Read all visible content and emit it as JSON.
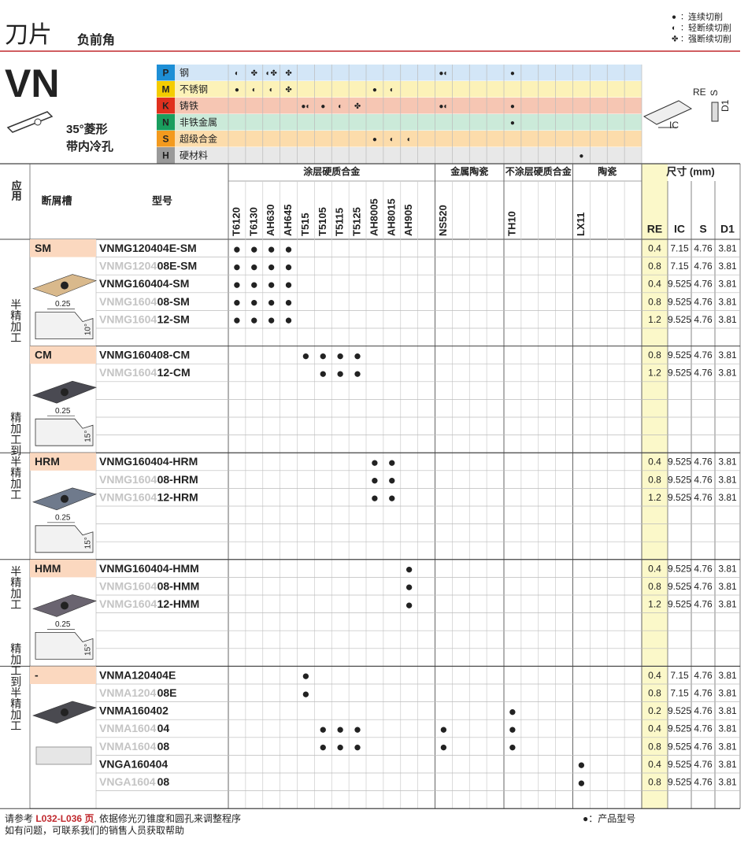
{
  "header": {
    "title": "刀片",
    "subtitle": "负前角",
    "code": "VN",
    "shape": [
      "35°菱形",
      "带内冷孔"
    ],
    "legend": [
      {
        "symbol": "●",
        "label": "连续切削"
      },
      {
        "symbol": "◐",
        "label": "轻断续切削"
      },
      {
        "symbol": "✤",
        "label": "强断续切削"
      }
    ]
  },
  "diagram": {
    "labels": [
      "RE",
      "S",
      "D1",
      "IC"
    ]
  },
  "materials": [
    {
      "code": "P",
      "name": "钢",
      "color": "#1e8fd6",
      "bg": "#d3e6f7",
      "marks": {
        "T6120": "◐",
        "T6130": "✤",
        "AH630": "◐✤",
        "AH645": "✤",
        "NS520": "●◐",
        "TH10": "●"
      }
    },
    {
      "code": "M",
      "name": "不锈钢",
      "color": "#f4cc00",
      "bg": "#fcf2b8",
      "marks": {
        "T6120": "●",
        "T6130": "◐",
        "AH630": "◐",
        "AH645": "✤",
        "AH8005": "●",
        "AH8015": "◐"
      }
    },
    {
      "code": "K",
      "name": "铸铁",
      "color": "#e0301e",
      "bg": "#f6c6b3",
      "marks": {
        "T515": "●◐",
        "T5105": "●",
        "T5115": "◐",
        "T5125": "✤",
        "NS520": "●◐",
        "TH10": "●"
      }
    },
    {
      "code": "N",
      "name": "非铁金属",
      "color": "#1a9e5e",
      "bg": "#cbead9",
      "marks": {
        "TH10": "●"
      }
    },
    {
      "code": "S",
      "name": "超级合金",
      "color": "#f39a1e",
      "bg": "#fcdcab",
      "marks": {
        "AH8005": "●",
        "AH8015": "◐",
        "AH905": "◐"
      }
    },
    {
      "code": "H",
      "name": "硬材料",
      "color": "#9a9a9a",
      "bg": "#e8e8e8",
      "marks": {
        "LX11": "●"
      }
    }
  ],
  "table": {
    "headers": {
      "application": "应用",
      "breaker": "断屑槽",
      "model": "型号",
      "dims": "尺寸 (mm)",
      "dim_cols": [
        "RE",
        "IC",
        "S",
        "D1"
      ]
    },
    "grade_groups": [
      {
        "name": "涂层硬质合金",
        "grades": [
          "T6120",
          "T6130",
          "AH630",
          "AH645",
          "T515",
          "T5105",
          "T5115",
          "T5125",
          "AH8005",
          "AH8015",
          "AH905",
          null
        ]
      },
      {
        "name": "金属陶瓷",
        "grades": [
          "NS520",
          null,
          null,
          null
        ]
      },
      {
        "name": "不涂层硬质合金",
        "grades": [
          "TH10",
          null,
          null,
          null
        ]
      },
      {
        "name": "陶瓷",
        "grades": [
          "LX11",
          null,
          null,
          null
        ]
      }
    ],
    "sections": [
      {
        "application": "半精加工",
        "breakers": [
          {
            "name": "SM",
            "insert": "#d9b98c",
            "profile": [
              "0.25",
              "10°"
            ],
            "rows": [
              {
                "model": "VNMG120404E-SM",
                "grades": {
                  "T6120": "●",
                  "T6130": "●",
                  "AH630": "●",
                  "AH645": "●"
                },
                "dims": [
                  0.4,
                  7.15,
                  4.76,
                  3.81
                ]
              },
              {
                "model": [
                  "VNMG1204",
                  "08E-SM"
                ],
                "grades": {
                  "T6120": "●",
                  "T6130": "●",
                  "AH630": "●",
                  "AH645": "●"
                },
                "dims": [
                  0.8,
                  7.15,
                  4.76,
                  3.81
                ]
              },
              {
                "model": "VNMG160404-SM",
                "grades": {
                  "T6120": "●",
                  "T6130": "●",
                  "AH630": "●",
                  "AH645": "●"
                },
                "dims": [
                  0.4,
                  9.525,
                  4.76,
                  3.81
                ]
              },
              {
                "model": [
                  "VNMG1604",
                  "08-SM"
                ],
                "grades": {
                  "T6120": "●",
                  "T6130": "●",
                  "AH630": "●",
                  "AH645": "●"
                },
                "dims": [
                  0.8,
                  9.525,
                  4.76,
                  3.81
                ]
              },
              {
                "model": [
                  "VNMG1604",
                  "12-SM"
                ],
                "grades": {
                  "T6120": "●",
                  "T6130": "●",
                  "AH630": "●",
                  "AH645": "●"
                },
                "dims": [
                  1.2,
                  9.525,
                  4.76,
                  3.81
                ]
              }
            ]
          },
          {
            "name": "CM",
            "insert": "#4a4a52",
            "profile": [
              "0.25",
              "15°"
            ],
            "rows": [
              {
                "model": "VNMG160408-CM",
                "grades": {
                  "T515": "●",
                  "T5105": "●",
                  "T5115": "●",
                  "T5125": "●"
                },
                "dims": [
                  0.8,
                  9.525,
                  4.76,
                  3.81
                ]
              },
              {
                "model": [
                  "VNMG1604",
                  "12-CM"
                ],
                "grades": {
                  "T5105": "●",
                  "T5115": "●",
                  "T5125": "●"
                },
                "dims": [
                  1.2,
                  9.525,
                  4.76,
                  3.81
                ]
              }
            ]
          }
        ]
      },
      {
        "application": "精加工到半精加工",
        "breakers": [
          {
            "name": "HRM",
            "insert": "#6f7a8c",
            "profile": [
              "0.25",
              "15°"
            ],
            "rows": [
              {
                "model": "VNMG160404-HRM",
                "grades": {
                  "AH8005": "●",
                  "AH8015": "●"
                },
                "dims": [
                  0.4,
                  9.525,
                  4.76,
                  3.81
                ]
              },
              {
                "model": [
                  "VNMG1604",
                  "08-HRM"
                ],
                "grades": {
                  "AH8005": "●",
                  "AH8015": "●"
                },
                "dims": [
                  0.8,
                  9.525,
                  4.76,
                  3.81
                ]
              },
              {
                "model": [
                  "VNMG1604",
                  "12-HRM"
                ],
                "grades": {
                  "AH8005": "●",
                  "AH8015": "●"
                },
                "dims": [
                  1.2,
                  9.525,
                  4.76,
                  3.81
                ]
              }
            ]
          }
        ]
      },
      {
        "application": "半精加工",
        "breakers": [
          {
            "name": "HMM",
            "insert": "#6a6470",
            "profile": [
              "0.25",
              "15°"
            ],
            "rows": [
              {
                "model": "VNMG160404-HMM",
                "grades": {
                  "AH905": "●"
                },
                "dims": [
                  0.4,
                  9.525,
                  4.76,
                  3.81
                ]
              },
              {
                "model": [
                  "VNMG1604",
                  "08-HMM"
                ],
                "grades": {
                  "AH905": "●"
                },
                "dims": [
                  0.8,
                  9.525,
                  4.76,
                  3.81
                ]
              },
              {
                "model": [
                  "VNMG1604",
                  "12-HMM"
                ],
                "grades": {
                  "AH905": "●"
                },
                "dims": [
                  1.2,
                  9.525,
                  4.76,
                  3.81
                ]
              }
            ]
          }
        ]
      },
      {
        "application": "精加工到半精加工",
        "breakers": [
          {
            "name": "-",
            "insert": "#4a4a50",
            "rows": [
              {
                "model": "VNMA120404E",
                "grades": {
                  "T515": "●"
                },
                "dims": [
                  0.4,
                  7.15,
                  4.76,
                  3.81
                ]
              },
              {
                "model": [
                  "VNMA1204",
                  "08E"
                ],
                "grades": {
                  "T515": "●"
                },
                "dims": [
                  0.8,
                  7.15,
                  4.76,
                  3.81
                ]
              },
              {
                "model": "VNMA160402",
                "grades": {
                  "TH10": "●"
                },
                "dims": [
                  0.2,
                  9.525,
                  4.76,
                  3.81
                ]
              },
              {
                "model": [
                  "VNMA1604",
                  "04"
                ],
                "grades": {
                  "T5105": "●",
                  "T5115": "●",
                  "T5125": "●",
                  "NS520": "●",
                  "TH10": "●"
                },
                "dims": [
                  0.4,
                  9.525,
                  4.76,
                  3.81
                ]
              },
              {
                "model": [
                  "VNMA1604",
                  "08"
                ],
                "grades": {
                  "T5105": "●",
                  "T5115": "●",
                  "T5125": "●",
                  "NS520": "●",
                  "TH10": "●"
                },
                "dims": [
                  0.8,
                  9.525,
                  4.76,
                  3.81
                ]
              },
              {
                "model": "VNGA160404",
                "grades": {
                  "LX11": "●"
                },
                "dims": [
                  0.4,
                  9.525,
                  4.76,
                  3.81
                ]
              },
              {
                "model": [
                  "VNGA1604",
                  "08"
                ],
                "grades": {
                  "LX11": "●"
                },
                "dims": [
                  0.8,
                  9.525,
                  4.76,
                  3.81
                ]
              }
            ]
          }
        ]
      }
    ]
  },
  "footer": {
    "note": [
      "请参考 ",
      "L032-L036 页",
      ", 依据修光刃锥度和圆孔来调整程序"
    ],
    "help": "如有问题，可联系我们的销售人员获取帮助",
    "legend": "●：产品型号"
  }
}
